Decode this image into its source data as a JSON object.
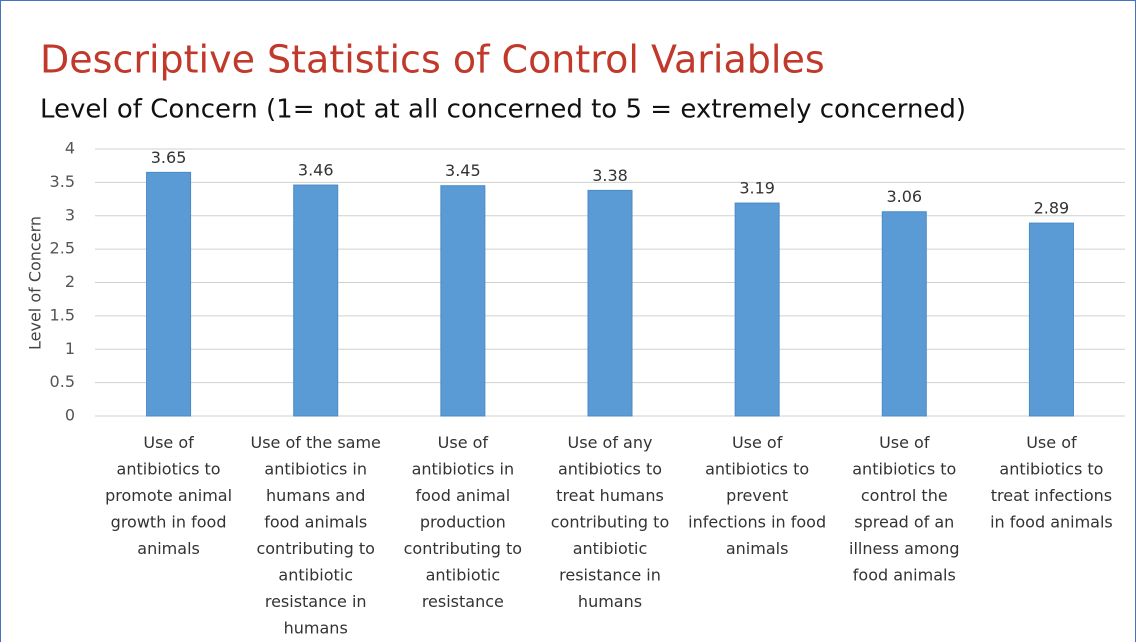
{
  "chart_data": {
    "type": "bar",
    "title": "Descriptive Statistics of Control Variables",
    "subtitle": "Level of Concern (1= not at all concerned to 5 = extremely concerned)",
    "y_label": "Level of Concern",
    "categories": [
      "Use of antibiotics to promote animal growth in food animals",
      "Use of the same antibiotics in humans and food animals contributing to antibiotic resistance in humans",
      "Use of antibiotics in food animal production contributing to antibiotic resistance",
      "Use of any antibiotics to treat humans contributing to antibiotic resistance in humans",
      "Use of antibiotics to prevent infections in food animals",
      "Use of antibiotics to control the spread of an illness among food animals",
      "Use of antibiotics to treat infections in food animals"
    ],
    "values": [
      3.65,
      3.46,
      3.45,
      3.38,
      3.19,
      3.06,
      2.89
    ],
    "color": "#5b9bd5",
    "ylim": [
      0,
      4
    ],
    "yticks": [
      0,
      0.5,
      1,
      1.5,
      2,
      2.5,
      3,
      3.5,
      4
    ],
    "grid": true
  }
}
